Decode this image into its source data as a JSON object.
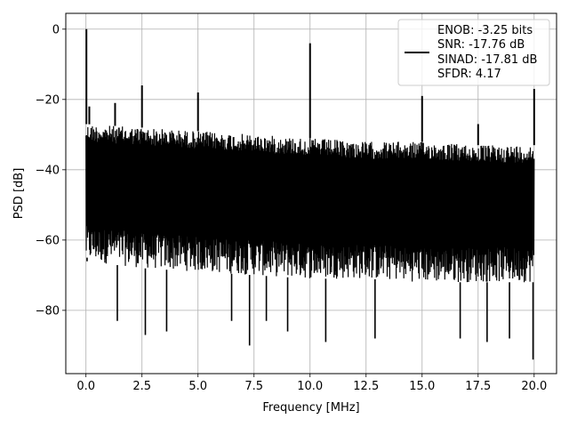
{
  "chart_data": {
    "type": "line",
    "title": "",
    "xlabel": "Frequency [MHz]",
    "ylabel": "PSD [dB]",
    "xlim": [
      -0.9,
      21.0
    ],
    "ylim": [
      -98,
      4.5
    ],
    "x_ticks": [
      0.0,
      2.5,
      5.0,
      7.5,
      10.0,
      12.5,
      15.0,
      17.5,
      20.0
    ],
    "x_tick_labels": [
      "0.0",
      "2.5",
      "5.0",
      "7.5",
      "10.0",
      "12.5",
      "15.0",
      "17.5",
      "20.0"
    ],
    "y_ticks": [
      0,
      -20,
      -40,
      -60,
      -80
    ],
    "y_tick_labels": [
      "0",
      "−20",
      "−40",
      "−60",
      "−80"
    ],
    "grid": true,
    "legend_position": "top-right",
    "series": [
      {
        "color": "#000000",
        "noise_floor_upper_envelope": {
          "x": [
            0.0,
            2.5,
            5.0,
            7.5,
            10.0,
            12.5,
            15.0,
            17.5,
            20.0
          ],
          "y": [
            -27,
            -28,
            -29,
            -30,
            -31,
            -32,
            -32,
            -33,
            -33
          ]
        },
        "noise_floor_lower_envelope": {
          "x": [
            0.0,
            2.5,
            5.0,
            7.5,
            10.0,
            12.5,
            15.0,
            17.5,
            20.0
          ],
          "y": [
            -66,
            -68,
            -69,
            -70,
            -71,
            -71,
            -72,
            -72,
            -72
          ]
        },
        "peaks": [
          {
            "x": 0.02,
            "y": 0
          },
          {
            "x": 0.15,
            "y": -22
          },
          {
            "x": 1.3,
            "y": -21
          },
          {
            "x": 2.5,
            "y": -16
          },
          {
            "x": 5.0,
            "y": -18
          },
          {
            "x": 10.0,
            "y": -4
          },
          {
            "x": 15.0,
            "y": -19
          },
          {
            "x": 17.5,
            "y": -27
          },
          {
            "x": 20.0,
            "y": -17
          }
        ],
        "dips": [
          {
            "x": 0.05,
            "y": -65
          },
          {
            "x": 1.4,
            "y": -83
          },
          {
            "x": 2.65,
            "y": -87
          },
          {
            "x": 3.6,
            "y": -86
          },
          {
            "x": 6.5,
            "y": -83
          },
          {
            "x": 7.3,
            "y": -90
          },
          {
            "x": 8.05,
            "y": -83
          },
          {
            "x": 9.0,
            "y": -86
          },
          {
            "x": 10.7,
            "y": -89
          },
          {
            "x": 12.9,
            "y": -88
          },
          {
            "x": 16.7,
            "y": -88
          },
          {
            "x": 17.9,
            "y": -89
          },
          {
            "x": 18.9,
            "y": -88
          },
          {
            "x": 19.95,
            "y": -94
          }
        ]
      }
    ],
    "legend": {
      "lines": [
        "ENOB: -3.25 bits",
        "SNR: -17.76 dB",
        "SINAD: -17.81 dB",
        "SFDR: 4.17"
      ]
    }
  }
}
